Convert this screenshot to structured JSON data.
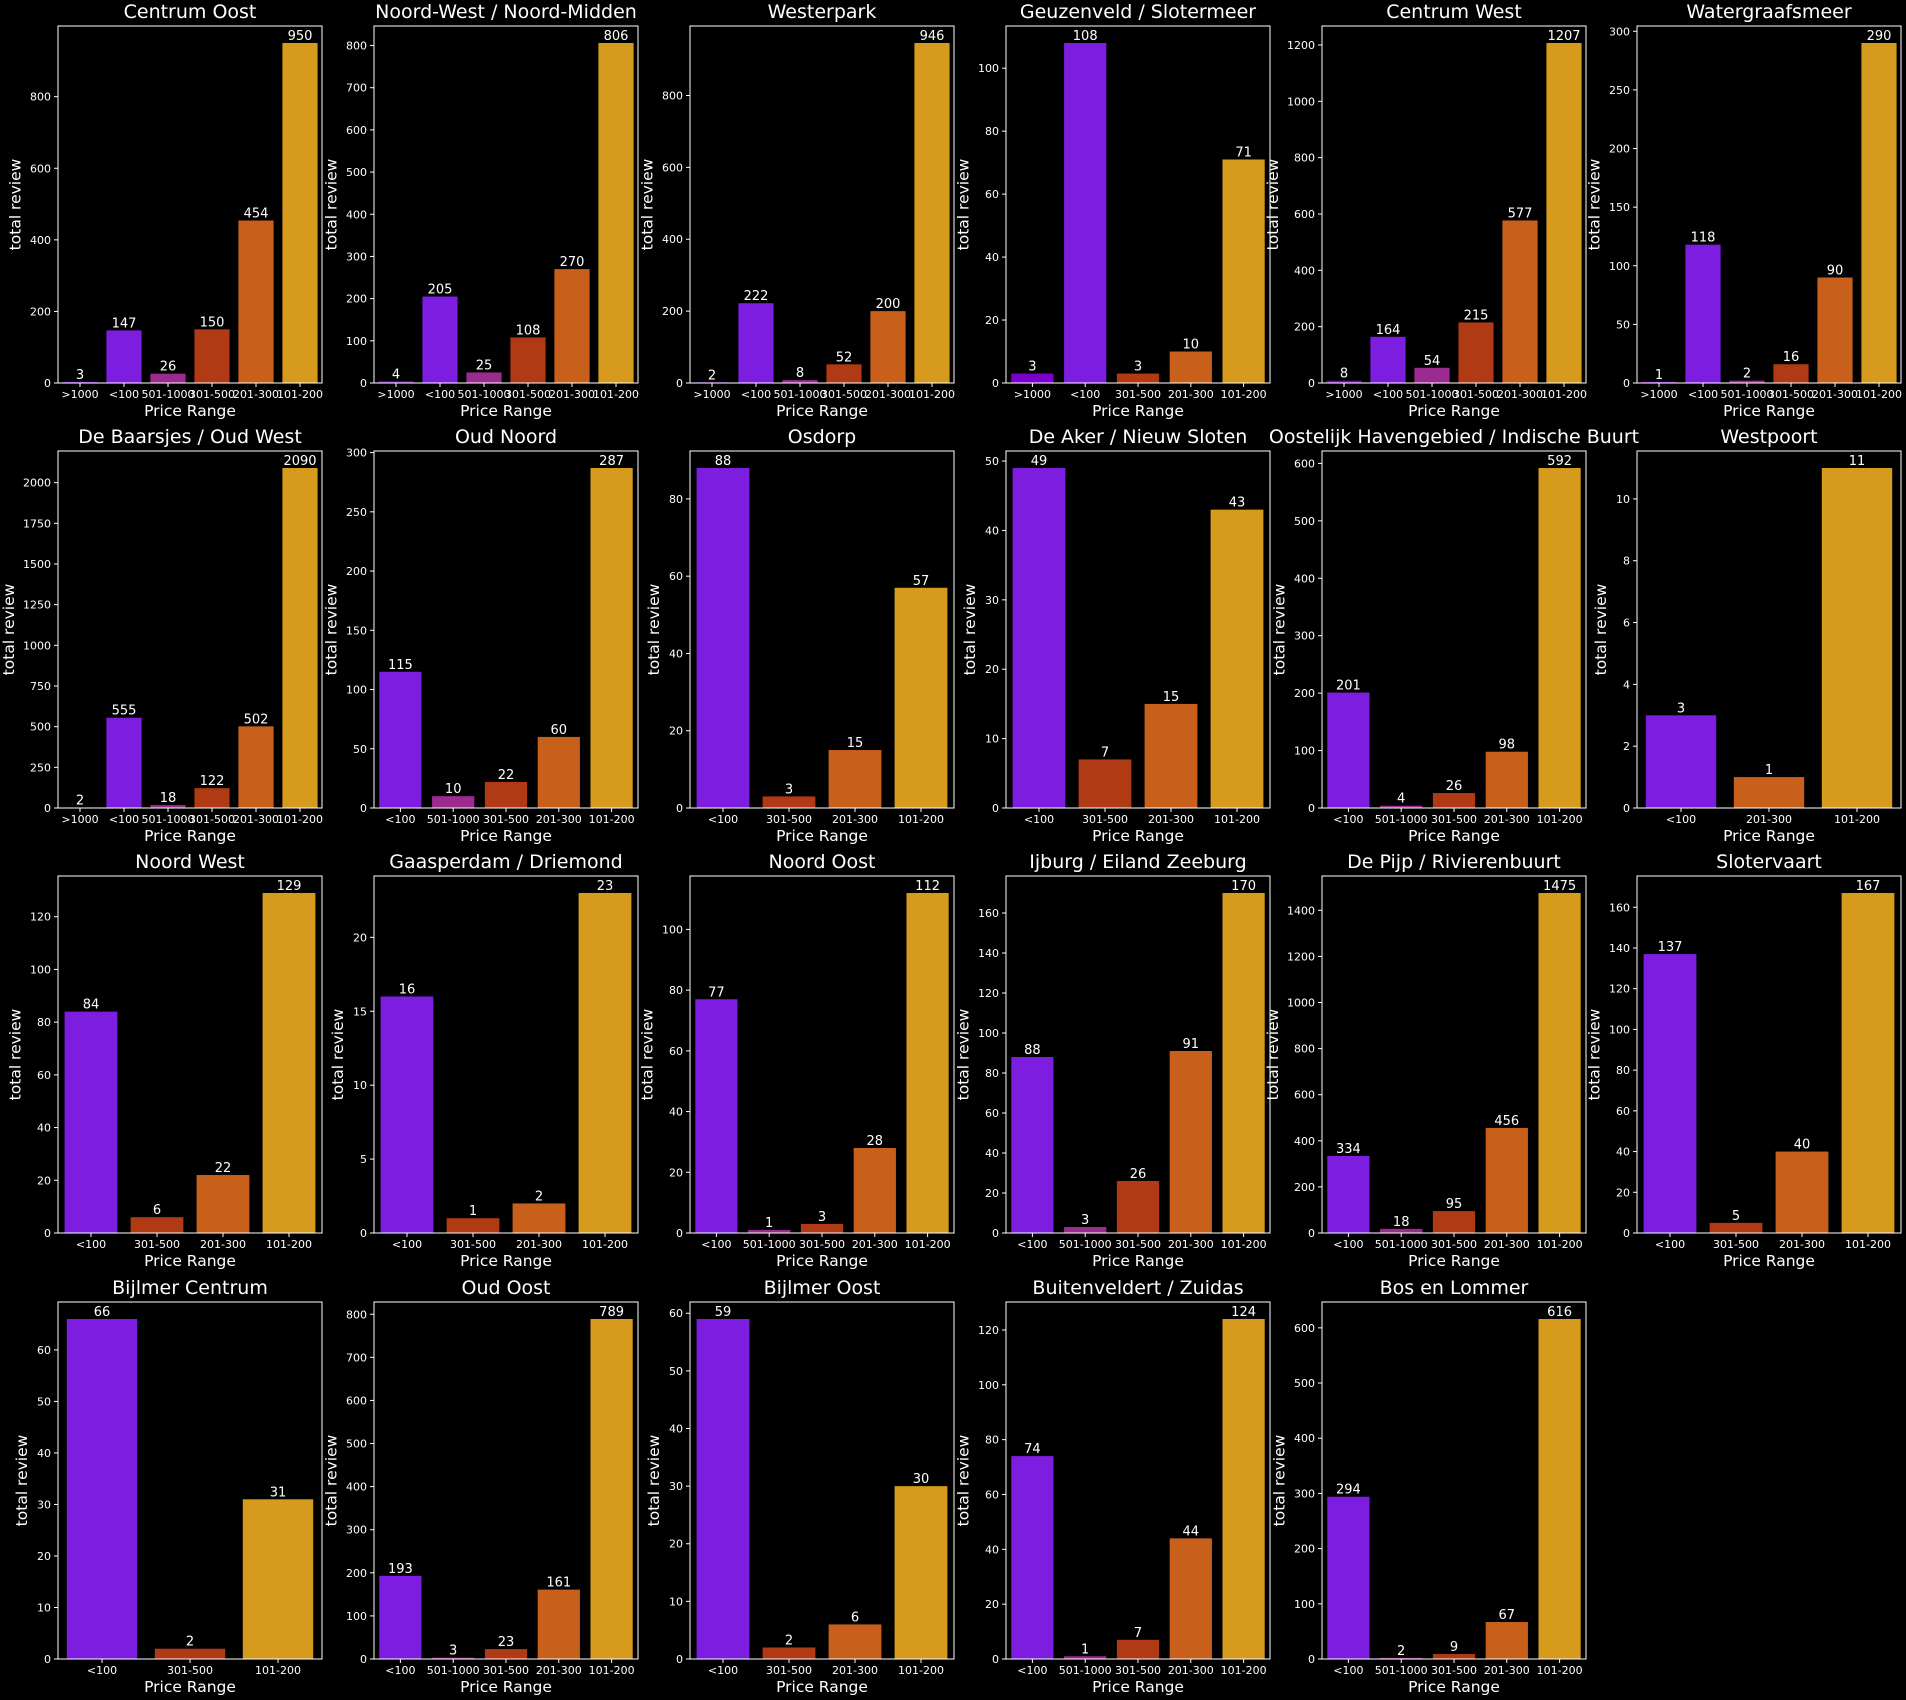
{
  "common": {
    "xlabel": "Price Range",
    "ylabel": "total review",
    "category_colors": {
      ">1000": "#7a00cc",
      "<100": "#7d1de0",
      "501-1000": "#9b2b8f",
      "301-500": "#b03a14",
      "201-300": "#c8601c",
      "101-200": "#d69a1c"
    }
  },
  "chart_data": [
    {
      "type": "bar",
      "title": "Centrum Oost",
      "xlabel": "Price Range",
      "ylabel": "total review",
      "categories": [
        ">1000",
        "<100",
        "501-1000",
        "301-500",
        "201-300",
        "101-200"
      ],
      "values": [
        3,
        147,
        26,
        150,
        454,
        950
      ],
      "ylim": [
        0,
        997.5
      ],
      "yticks": [
        0,
        200,
        400,
        600,
        800
      ]
    },
    {
      "type": "bar",
      "title": "Noord-West / Noord-Midden",
      "xlabel": "Price Range",
      "ylabel": "total review",
      "categories": [
        ">1000",
        "<100",
        "501-1000",
        "301-500",
        "201-300",
        "101-200"
      ],
      "values": [
        4,
        205,
        25,
        108,
        270,
        806
      ],
      "ylim": [
        0,
        846.3
      ],
      "yticks": [
        0,
        100,
        200,
        300,
        400,
        500,
        600,
        700,
        800
      ]
    },
    {
      "type": "bar",
      "title": "Westerpark",
      "xlabel": "Price Range",
      "ylabel": "total review",
      "categories": [
        ">1000",
        "<100",
        "501-1000",
        "301-500",
        "201-300",
        "101-200"
      ],
      "values": [
        2,
        222,
        8,
        52,
        200,
        946
      ],
      "ylim": [
        0,
        993.3
      ],
      "yticks": [
        0,
        200,
        400,
        600,
        800
      ]
    },
    {
      "type": "bar",
      "title": "Geuzenveld / Slotermeer",
      "xlabel": "Price Range",
      "ylabel": "total review",
      "categories": [
        ">1000",
        "<100",
        "301-500",
        "201-300",
        "101-200"
      ],
      "values": [
        3,
        108,
        3,
        10,
        71
      ],
      "ylim": [
        0,
        113.4
      ],
      "yticks": [
        0,
        20,
        40,
        60,
        80,
        100
      ]
    },
    {
      "type": "bar",
      "title": "Centrum West",
      "xlabel": "Price Range",
      "ylabel": "total review",
      "categories": [
        ">1000",
        "<100",
        "501-1000",
        "301-500",
        "201-300",
        "101-200"
      ],
      "values": [
        8,
        164,
        54,
        215,
        577,
        1207
      ],
      "ylim": [
        0,
        1267.35
      ],
      "yticks": [
        0,
        200,
        400,
        600,
        800,
        1000,
        1200
      ]
    },
    {
      "type": "bar",
      "title": "Watergraafsmeer",
      "xlabel": "Price Range",
      "ylabel": "total review",
      "categories": [
        ">1000",
        "<100",
        "501-1000",
        "301-500",
        "201-300",
        "101-200"
      ],
      "values": [
        1,
        118,
        2,
        16,
        90,
        290
      ],
      "ylim": [
        0,
        304.5
      ],
      "yticks": [
        0,
        50,
        100,
        150,
        200,
        250,
        300
      ]
    },
    {
      "type": "bar",
      "title": "De Baarsjes / Oud West",
      "xlabel": "Price Range",
      "ylabel": "total review",
      "categories": [
        ">1000",
        "<100",
        "501-1000",
        "301-500",
        "201-300",
        "101-200"
      ],
      "values": [
        2,
        555,
        18,
        122,
        502,
        2090
      ],
      "ylim": [
        0,
        2194.5
      ],
      "yticks": [
        0,
        250,
        500,
        750,
        1000,
        1250,
        1500,
        1750,
        2000
      ]
    },
    {
      "type": "bar",
      "title": "Oud Noord",
      "xlabel": "Price Range",
      "ylabel": "total review",
      "categories": [
        "<100",
        "501-1000",
        "301-500",
        "201-300",
        "101-200"
      ],
      "values": [
        115,
        10,
        22,
        60,
        287
      ],
      "ylim": [
        0,
        301.35
      ],
      "yticks": [
        0,
        50,
        100,
        150,
        200,
        250,
        300
      ]
    },
    {
      "type": "bar",
      "title": "Osdorp",
      "xlabel": "Price Range",
      "ylabel": "total review",
      "categories": [
        "<100",
        "301-500",
        "201-300",
        "101-200"
      ],
      "values": [
        88,
        3,
        15,
        57
      ],
      "ylim": [
        0,
        92.4
      ],
      "yticks": [
        0,
        20,
        40,
        60,
        80
      ]
    },
    {
      "type": "bar",
      "title": "De Aker / Nieuw Sloten",
      "xlabel": "Price Range",
      "ylabel": "total review",
      "categories": [
        "<100",
        "301-500",
        "201-300",
        "101-200"
      ],
      "values": [
        49,
        7,
        15,
        43
      ],
      "ylim": [
        0,
        51.45
      ],
      "yticks": [
        0,
        10,
        20,
        30,
        40,
        50
      ]
    },
    {
      "type": "bar",
      "title": "Oostelijk Havengebied / Indische Buurt",
      "xlabel": "Price Range",
      "ylabel": "total review",
      "categories": [
        "<100",
        "501-1000",
        "301-500",
        "201-300",
        "101-200"
      ],
      "values": [
        201,
        4,
        26,
        98,
        592
      ],
      "ylim": [
        0,
        621.6
      ],
      "yticks": [
        0,
        100,
        200,
        300,
        400,
        500,
        600
      ]
    },
    {
      "type": "bar",
      "title": "Westpoort",
      "xlabel": "Price Range",
      "ylabel": "total review",
      "categories": [
        "<100",
        "201-300",
        "101-200"
      ],
      "values": [
        3,
        1,
        11
      ],
      "ylim": [
        0,
        11.55
      ],
      "yticks": [
        0,
        2,
        4,
        6,
        8,
        10
      ]
    },
    {
      "type": "bar",
      "title": "Noord West",
      "xlabel": "Price Range",
      "ylabel": "total review",
      "categories": [
        "<100",
        "301-500",
        "201-300",
        "101-200"
      ],
      "values": [
        84,
        6,
        22,
        129
      ],
      "ylim": [
        0,
        135.45
      ],
      "yticks": [
        0,
        20,
        40,
        60,
        80,
        100,
        120
      ]
    },
    {
      "type": "bar",
      "title": "Gaasperdam / Driemond",
      "xlabel": "Price Range",
      "ylabel": "total review",
      "categories": [
        "<100",
        "301-500",
        "201-300",
        "101-200"
      ],
      "values": [
        16,
        1,
        2,
        23
      ],
      "ylim": [
        0,
        24.15
      ],
      "yticks": [
        0,
        5,
        10,
        15,
        20
      ]
    },
    {
      "type": "bar",
      "title": "Noord Oost",
      "xlabel": "Price Range",
      "ylabel": "total review",
      "categories": [
        "<100",
        "501-1000",
        "301-500",
        "201-300",
        "101-200"
      ],
      "values": [
        77,
        1,
        3,
        28,
        112
      ],
      "ylim": [
        0,
        117.6
      ],
      "yticks": [
        0,
        20,
        40,
        60,
        80,
        100
      ]
    },
    {
      "type": "bar",
      "title": "Ijburg / Eiland Zeeburg",
      "xlabel": "Price Range",
      "ylabel": "total review",
      "categories": [
        "<100",
        "501-1000",
        "301-500",
        "201-300",
        "101-200"
      ],
      "values": [
        88,
        3,
        26,
        91,
        170
      ],
      "ylim": [
        0,
        178.5
      ],
      "yticks": [
        0,
        20,
        40,
        60,
        80,
        100,
        120,
        140,
        160
      ]
    },
    {
      "type": "bar",
      "title": "De Pijp / Rivierenbuurt",
      "xlabel": "Price Range",
      "ylabel": "total review",
      "categories": [
        "<100",
        "501-1000",
        "301-500",
        "201-300",
        "101-200"
      ],
      "values": [
        334,
        18,
        95,
        456,
        1475
      ],
      "ylim": [
        0,
        1548.75
      ],
      "yticks": [
        0,
        200,
        400,
        600,
        800,
        1000,
        1200,
        1400
      ]
    },
    {
      "type": "bar",
      "title": "Slotervaart",
      "xlabel": "Price Range",
      "ylabel": "total review",
      "categories": [
        "<100",
        "301-500",
        "201-300",
        "101-200"
      ],
      "values": [
        137,
        5,
        40,
        167
      ],
      "ylim": [
        0,
        175.35
      ],
      "yticks": [
        0,
        20,
        40,
        60,
        80,
        100,
        120,
        140,
        160
      ]
    },
    {
      "type": "bar",
      "title": "Bijlmer Centrum",
      "xlabel": "Price Range",
      "ylabel": "total review",
      "categories": [
        "<100",
        "301-500",
        "101-200"
      ],
      "values": [
        66,
        2,
        31
      ],
      "ylim": [
        0,
        69.3
      ],
      "yticks": [
        0,
        10,
        20,
        30,
        40,
        50,
        60
      ]
    },
    {
      "type": "bar",
      "title": "Oud Oost",
      "xlabel": "Price Range",
      "ylabel": "total review",
      "categories": [
        "<100",
        "501-1000",
        "301-500",
        "201-300",
        "101-200"
      ],
      "values": [
        193,
        3,
        23,
        161,
        789
      ],
      "ylim": [
        0,
        828.45
      ],
      "yticks": [
        0,
        100,
        200,
        300,
        400,
        500,
        600,
        700,
        800
      ]
    },
    {
      "type": "bar",
      "title": "Bijlmer Oost",
      "xlabel": "Price Range",
      "ylabel": "total review",
      "categories": [
        "<100",
        "301-500",
        "201-300",
        "101-200"
      ],
      "values": [
        59,
        2,
        6,
        30
      ],
      "ylim": [
        0,
        61.95
      ],
      "yticks": [
        0,
        10,
        20,
        30,
        40,
        50,
        60
      ]
    },
    {
      "type": "bar",
      "title": "Buitenveldert / Zuidas",
      "xlabel": "Price Range",
      "ylabel": "total review",
      "categories": [
        "<100",
        "501-1000",
        "301-500",
        "201-300",
        "101-200"
      ],
      "values": [
        74,
        1,
        7,
        44,
        124
      ],
      "ylim": [
        0,
        130.2
      ],
      "yticks": [
        0,
        20,
        40,
        60,
        80,
        100,
        120
      ]
    },
    {
      "type": "bar",
      "title": "Bos en Lommer",
      "xlabel": "Price Range",
      "ylabel": "total review",
      "categories": [
        "<100",
        "501-1000",
        "301-500",
        "201-300",
        "101-200"
      ],
      "values": [
        294,
        2,
        9,
        67,
        616
      ],
      "ylim": [
        0,
        646.8
      ],
      "yticks": [
        0,
        100,
        200,
        300,
        400,
        500,
        600
      ]
    }
  ]
}
